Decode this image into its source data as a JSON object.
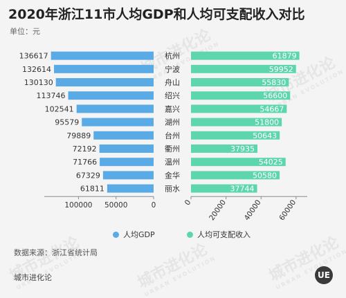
{
  "title": "2020年浙江11市人均GDP和人均可支配收入对比",
  "unit": "单位：元",
  "source": "数据来源：浙江省统计局",
  "footer_text": "城市进化论",
  "logo_text": "UE",
  "watermark": {
    "text": "城市进化论",
    "sub": "URBAN EVOLUTION"
  },
  "colors": {
    "gdp": "#5aaae6",
    "income": "#5ed6ad",
    "axis": "#888888",
    "text": "#333333"
  },
  "chart_data": {
    "type": "bar",
    "orientation": "horizontal",
    "layout": "butterfly",
    "categories": [
      "杭州",
      "宁波",
      "舟山",
      "绍兴",
      "嘉兴",
      "湖州",
      "台州",
      "衢州",
      "温州",
      "金华",
      "丽水"
    ],
    "series": [
      {
        "name": "人均GDP",
        "direction": "left",
        "values": [
          136617,
          132614,
          130130,
          113746,
          102541,
          95579,
          79889,
          72192,
          71766,
          67329,
          61811
        ],
        "xlim": [
          0,
          140000
        ],
        "ticks": [
          0,
          50000,
          100000
        ]
      },
      {
        "name": "人均可支配收入",
        "direction": "right",
        "values": [
          61879,
          59952,
          55830,
          56600,
          54667,
          51800,
          50643,
          37935,
          54025,
          50580,
          37744
        ],
        "xlim": [
          0,
          64000
        ],
        "ticks": [
          0,
          20000,
          40000,
          60000
        ]
      }
    ],
    "legend_position": "bottom",
    "grid": false
  }
}
